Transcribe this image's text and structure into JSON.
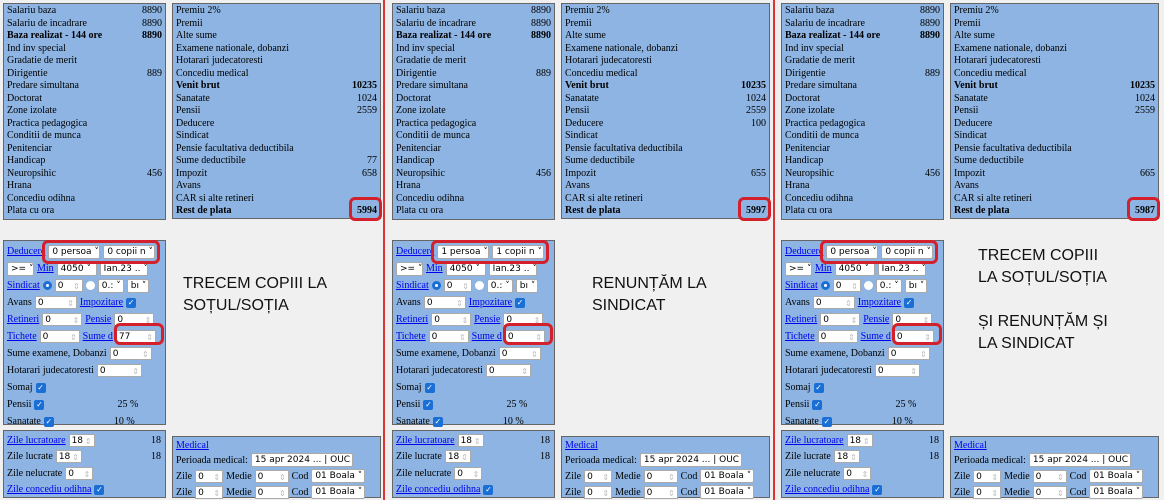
{
  "colors": {
    "box": "#8db4e2",
    "highlight": "#d4202a",
    "separator": "#dd3333"
  },
  "panels": [
    {
      "left": [
        [
          "Salariu baza",
          "8890"
        ],
        [
          "Salariu de incadrare",
          "8890"
        ],
        [
          "Baza realizat - 144 ore",
          "8890"
        ],
        [
          "Ind inv special",
          ""
        ],
        [
          "Gradatie de merit",
          ""
        ],
        [
          "Dirigentie",
          "889"
        ],
        [
          "Predare simultana",
          ""
        ],
        [
          "Doctorat",
          ""
        ],
        [
          "Zone izolate",
          ""
        ],
        [
          "Practica pedagogica",
          ""
        ],
        [
          "Conditii de munca",
          ""
        ],
        [
          "Penitenciar",
          ""
        ],
        [
          "Handicap",
          ""
        ],
        [
          "Neuropsihic",
          "456"
        ],
        [
          "Hrana",
          ""
        ],
        [
          "Concediu odihna",
          ""
        ],
        [
          "Plata cu ora",
          ""
        ]
      ],
      "right": [
        [
          "Premiu 2%",
          ""
        ],
        [
          "Premii",
          ""
        ],
        [
          "Alte sume",
          ""
        ],
        [
          "Examene nationale, dobanzi",
          ""
        ],
        [
          "Hotarari judecatoresti",
          ""
        ],
        [
          "Concediu medical",
          ""
        ],
        [
          "Venit brut",
          "10235"
        ],
        [
          "Sanatate",
          "1024"
        ],
        [
          "Pensii",
          "2559"
        ],
        [
          "Deducere",
          ""
        ],
        [
          "Sindicat",
          ""
        ],
        [
          "Pensie facultativa deductibila",
          ""
        ],
        [
          "Sume deductibile",
          "77"
        ],
        [
          "Impozit",
          "658"
        ],
        [
          "Avans",
          ""
        ],
        [
          "CAR si alte retineri",
          ""
        ],
        [
          "Rest de plata",
          "5994"
        ]
      ],
      "persons": "0 persoa",
      "children": "0 copii n",
      "sume_d": "77",
      "note": "TRECEM COPIII LA\nSOȚUL/SOȚIA"
    },
    {
      "left": [
        [
          "Salariu baza",
          "8890"
        ],
        [
          "Salariu de incadrare",
          "8890"
        ],
        [
          "Baza realizat - 144 ore",
          "8890"
        ],
        [
          "Ind inv special",
          ""
        ],
        [
          "Gradatie de merit",
          ""
        ],
        [
          "Dirigentie",
          "889"
        ],
        [
          "Predare simultana",
          ""
        ],
        [
          "Doctorat",
          ""
        ],
        [
          "Zone izolate",
          ""
        ],
        [
          "Practica pedagogica",
          ""
        ],
        [
          "Conditii de munca",
          ""
        ],
        [
          "Penitenciar",
          ""
        ],
        [
          "Handicap",
          ""
        ],
        [
          "Neuropsihic",
          "456"
        ],
        [
          "Hrana",
          ""
        ],
        [
          "Concediu odihna",
          ""
        ],
        [
          "Plata cu ora",
          ""
        ]
      ],
      "right": [
        [
          "Premiu 2%",
          ""
        ],
        [
          "Premii",
          ""
        ],
        [
          "Alte sume",
          ""
        ],
        [
          "Examene nationale, dobanzi",
          ""
        ],
        [
          "Hotarari judecatoresti",
          ""
        ],
        [
          "Concediu medical",
          ""
        ],
        [
          "Venit brut",
          "10235"
        ],
        [
          "Sanatate",
          "1024"
        ],
        [
          "Pensii",
          "2559"
        ],
        [
          "Deducere",
          "100"
        ],
        [
          "Sindicat",
          ""
        ],
        [
          "Pensie facultativa deductibila",
          ""
        ],
        [
          "Sume deductibile",
          ""
        ],
        [
          "Impozit",
          "655"
        ],
        [
          "Avans",
          ""
        ],
        [
          "CAR si alte retineri",
          ""
        ],
        [
          "Rest de plata",
          "5997"
        ]
      ],
      "persons": "1 persoa",
      "children": "1 copii n",
      "sume_d": "0",
      "note": "RENUNȚĂM LA\nSINDICAT"
    },
    {
      "left": [
        [
          "Salariu baza",
          "8890"
        ],
        [
          "Salariu de incadrare",
          "8890"
        ],
        [
          "Baza realizat - 144 ore",
          "8890"
        ],
        [
          "Ind inv special",
          ""
        ],
        [
          "Gradatie de merit",
          ""
        ],
        [
          "Dirigentie",
          "889"
        ],
        [
          "Predare simultana",
          ""
        ],
        [
          "Doctorat",
          ""
        ],
        [
          "Zone izolate",
          ""
        ],
        [
          "Practica pedagogica",
          ""
        ],
        [
          "Conditii de munca",
          ""
        ],
        [
          "Penitenciar",
          ""
        ],
        [
          "Handicap",
          ""
        ],
        [
          "Neuropsihic",
          "456"
        ],
        [
          "Hrana",
          ""
        ],
        [
          "Concediu odihna",
          ""
        ],
        [
          "Plata cu ora",
          ""
        ]
      ],
      "right": [
        [
          "Premiu 2%",
          ""
        ],
        [
          "Premii",
          ""
        ],
        [
          "Alte sume",
          ""
        ],
        [
          "Examene nationale, dobanzi",
          ""
        ],
        [
          "Hotarari judecatoresti",
          ""
        ],
        [
          "Concediu medical",
          ""
        ],
        [
          "Venit brut",
          "10235"
        ],
        [
          "Sanatate",
          "1024"
        ],
        [
          "Pensii",
          "2559"
        ],
        [
          "Deducere",
          ""
        ],
        [
          "Sindicat",
          ""
        ],
        [
          "Pensie facultativa deductibila",
          ""
        ],
        [
          "Sume deductibile",
          ""
        ],
        [
          "Impozit",
          "665"
        ],
        [
          "Avans",
          ""
        ],
        [
          "CAR si alte retineri",
          ""
        ],
        [
          "Rest de plata",
          "5987"
        ]
      ],
      "persons": "0 persoa",
      "children": "0 copii n",
      "sume_d": "0",
      "note": "TRECEM COPIII\nLA SOȚUL/SOȚIA\n\nȘI RENUNȚĂM ȘI\nLA SINDICAT"
    }
  ],
  "form": {
    "deducere": "Deducere",
    "op": ">= ",
    "min": "Min",
    "min_val": "4050",
    "month": "Ian.23 ..",
    "sindicat": "Sindicat",
    "sind_val": "0",
    "sind_pct": "0.:",
    "sind_b": "bı",
    "avans": "Avans",
    "avans_val": "0",
    "impozitare": "Impozitare",
    "retineri": "Retineri",
    "retineri_val": "0",
    "pensie": "Pensie",
    "pensie_val": "0",
    "tichete": "Tichete",
    "tichete_val": "0",
    "sume": "Sume d",
    "examene": "Sume examene, Dobanzi",
    "examene_val": "0",
    "hotarari": "Hotarari judecatoresti",
    "hotarari_val": "0",
    "somaj": "Somaj",
    "pensii": "Pensii",
    "pensii_pct": "25 %",
    "sanatate": "Sanatate",
    "sanatate_pct": "10 %"
  },
  "days": {
    "lucratoare": "Zile lucratoare",
    "lucratoare_val": "18",
    "lucratoare_tot": "18",
    "lucrate": "Zile lucrate",
    "lucrate_val": "18",
    "lucrate_tot": "18",
    "nelucrate": "Zile nelucrate",
    "nelucrate_val": "0",
    "odihna": "Zile concediu odihna"
  },
  "medical": {
    "title": "Medical",
    "perioada": "Perioada medical:",
    "perioada_val": "15 apr 2024 ... | OUC",
    "zile": "Zile",
    "zile_val": "0",
    "medie": "Medie",
    "medie_val": "0",
    "cod": "Cod",
    "cod_val": "01 Boala"
  }
}
